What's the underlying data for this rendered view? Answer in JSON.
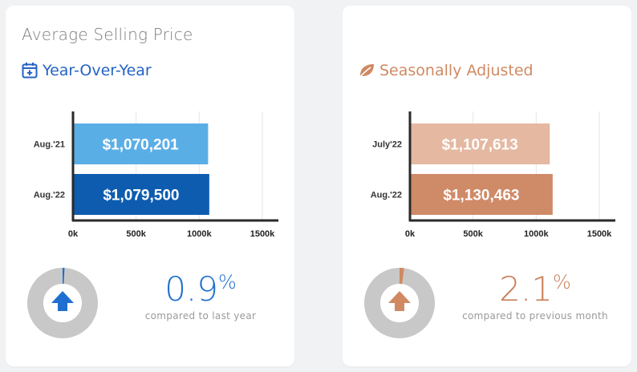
{
  "page": {
    "title": "Average Selling Price"
  },
  "panels": [
    {
      "subtitle": "Year-Over-Year",
      "icon": "calendar-plus-icon",
      "accent": "#2563c4",
      "bar_colors": [
        "#5aaee6",
        "#0d5cb0"
      ],
      "stat": {
        "value": "0.9",
        "unit": "%",
        "caption": "compared to last year",
        "direction": "up"
      },
      "donut_colors": {
        "ring": "#c8c8c8",
        "marker": "#1f6fd0",
        "arrow": "#1f6fd0"
      },
      "chart_data": {
        "type": "bar",
        "orientation": "horizontal",
        "categories": [
          "Aug.'21",
          "Aug.'22"
        ],
        "values": [
          1070201,
          1079500
        ],
        "value_labels": [
          "$1,070,201",
          "$1,079,500"
        ],
        "xlim": [
          0,
          1500000
        ],
        "xticks": [
          0,
          500000,
          1000000,
          1500000
        ],
        "xtick_labels": [
          "0k",
          "500k",
          "1000k",
          "1500k"
        ],
        "grid": true
      }
    },
    {
      "subtitle": "Seasonally Adjusted",
      "icon": "leaf-icon",
      "accent": "#d08a63",
      "bar_colors": [
        "#e5b8a1",
        "#cf8a68"
      ],
      "stat": {
        "value": "2.1",
        "unit": "%",
        "caption": "compared to previous month",
        "direction": "up"
      },
      "donut_colors": {
        "ring": "#c8c8c8",
        "marker": "#d08a63",
        "arrow": "#d08a63"
      },
      "chart_data": {
        "type": "bar",
        "orientation": "horizontal",
        "categories": [
          "July'22",
          "Aug.'22"
        ],
        "values": [
          1107613,
          1130463
        ],
        "value_labels": [
          "$1,107,613",
          "$1,130,463"
        ],
        "xlim": [
          0,
          1500000
        ],
        "xticks": [
          0,
          500000,
          1000000,
          1500000
        ],
        "xtick_labels": [
          "0k",
          "500k",
          "1000k",
          "1500k"
        ],
        "grid": true
      }
    }
  ]
}
